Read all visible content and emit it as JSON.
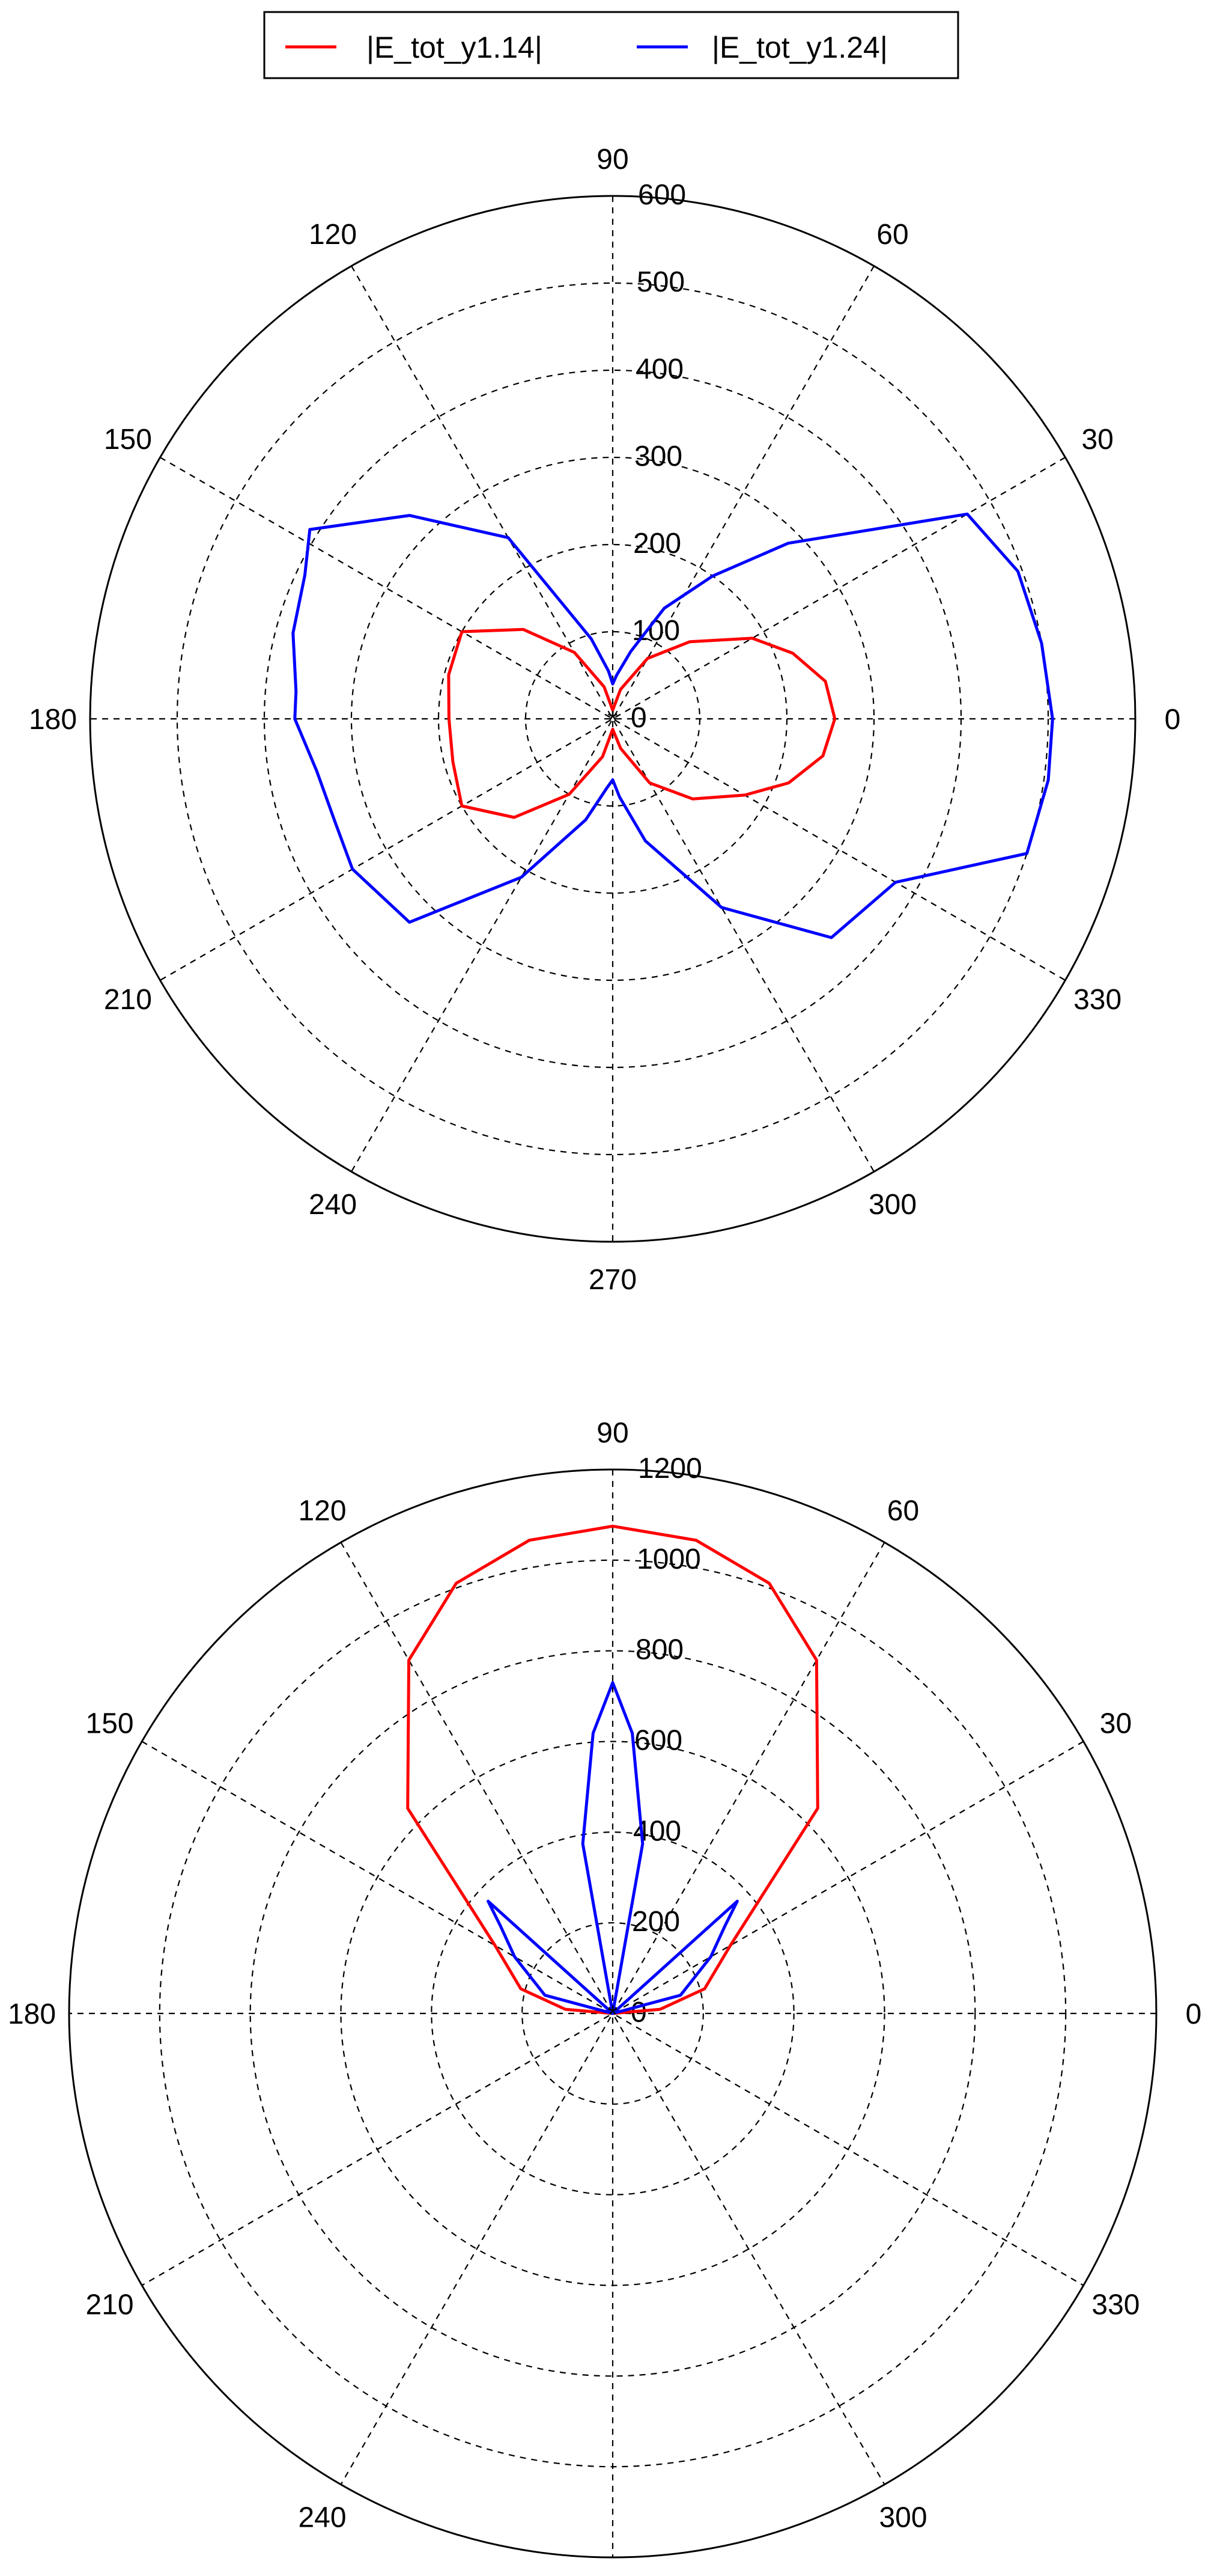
{
  "legend": {
    "entries": [
      {
        "label": "|E_tot_y1.14|",
        "color": "#ff0000"
      },
      {
        "label": "|E_tot_y1.24|",
        "color": "#0000ff"
      }
    ]
  },
  "chart_data": [
    {
      "type": "polar-line",
      "angle_unit": "degrees",
      "angle_ticks": [
        0,
        30,
        60,
        90,
        120,
        150,
        180,
        210,
        240,
        270,
        300,
        330
      ],
      "radial_ticks": [
        0,
        100,
        200,
        300,
        400,
        500,
        600
      ],
      "rlim": [
        0,
        600
      ],
      "grid": true,
      "series": [
        {
          "name": "|E_tot_y1.14|",
          "color": "#ff0000",
          "theta": [
            0,
            10,
            20,
            30,
            45,
            60,
            75,
            90,
            105,
            120,
            135,
            150,
            165,
            180,
            195,
            210,
            225,
            240,
            255,
            270,
            285,
            300,
            315,
            330,
            340,
            350
          ],
          "r": [
            255,
            248,
            220,
            185,
            125,
            80,
            35,
            10,
            38,
            88,
            145,
            200,
            195,
            188,
            190,
            200,
            160,
            100,
            45,
            12,
            35,
            85,
            130,
            175,
            215,
            245
          ]
        },
        {
          "name": "|E_tot_y1.24|",
          "color": "#0000ff",
          "theta": [
            0,
            10,
            20,
            30,
            45,
            55,
            65,
            75,
            85,
            90,
            95,
            105,
            120,
            135,
            148,
            155,
            165,
            175,
            180,
            190,
            200,
            210,
            225,
            240,
            255,
            265,
            270,
            275,
            285,
            300,
            315,
            330,
            342,
            352
          ],
          "r": [
            505,
            500,
            495,
            470,
            285,
            200,
            140,
            80,
            50,
            40,
            55,
            95,
            240,
            330,
            410,
            390,
            380,
            365,
            365,
            345,
            340,
            345,
            330,
            210,
            120,
            80,
            70,
            90,
            145,
            250,
            355,
            375,
            500,
            505
          ]
        }
      ]
    },
    {
      "type": "polar-line",
      "angle_unit": "degrees",
      "angle_ticks": [
        0,
        30,
        60,
        90,
        120,
        150,
        180,
        210,
        240,
        270,
        300,
        330
      ],
      "radial_ticks": [
        0,
        200,
        400,
        600,
        800,
        1000,
        1200
      ],
      "rlim": [
        0,
        1200
      ],
      "grid": true,
      "series": [
        {
          "name": "|E_tot_y1.14|",
          "color": "#ff0000",
          "theta": [
            0,
            5,
            15,
            30,
            45,
            60,
            70,
            80,
            90,
            100,
            110,
            120,
            135,
            150,
            165,
            175,
            180
          ],
          "r": [
            0,
            105,
            210,
            300,
            640,
            900,
            1010,
            1060,
            1075,
            1060,
            1010,
            900,
            640,
            300,
            210,
            105,
            0
          ]
        },
        {
          "name": "|E_tot_y1.24|",
          "color": "#0000ff",
          "theta": [
            0,
            15,
            30,
            38,
            42,
            55,
            70,
            80,
            86,
            90,
            94,
            100,
            110,
            125,
            138,
            142,
            150,
            165,
            180
          ],
          "r": [
            0,
            155,
            250,
            315,
            370,
            0,
            0,
            380,
            620,
            730,
            620,
            380,
            0,
            0,
            370,
            315,
            250,
            155,
            0
          ]
        }
      ]
    }
  ]
}
